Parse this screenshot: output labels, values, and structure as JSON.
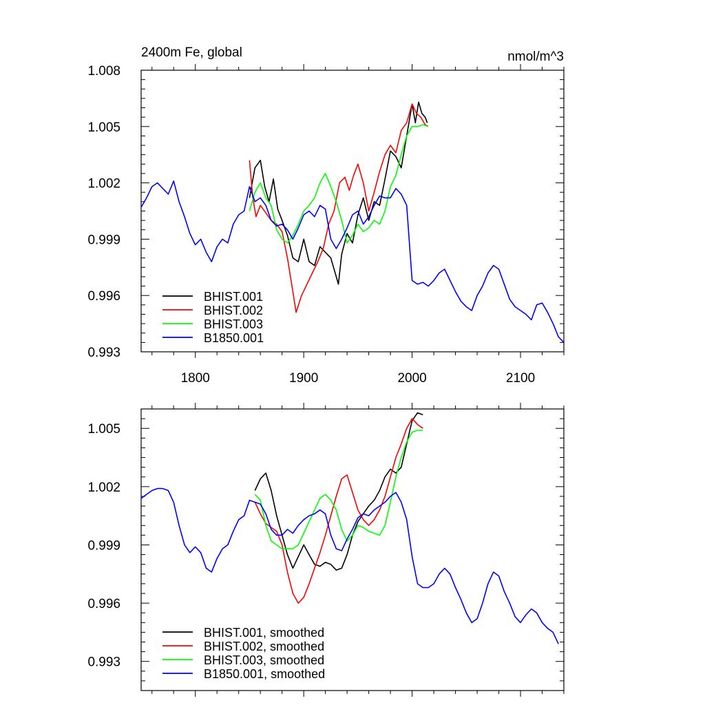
{
  "title_left": "2400m Fe, global",
  "title_right": "nmol/m^3",
  "chart_data": [
    {
      "type": "line",
      "title": "2400m Fe, global",
      "units": "nmol/m^3",
      "xlim": [
        1750,
        2140
      ],
      "ylim": [
        0.993,
        1.008
      ],
      "xticks": [
        1800,
        1900,
        2000,
        2100
      ],
      "xtick_labels": [
        "1800",
        "1900",
        "2000",
        "2100"
      ],
      "yticks": [
        0.993,
        0.996,
        0.999,
        1.002,
        1.005,
        1.008
      ],
      "ytick_labels": [
        "0.993",
        "0.996",
        "0.999",
        "1.002",
        "1.005",
        "1.008"
      ],
      "legend": "bottom-left",
      "series": [
        {
          "name": "BHIST.001",
          "color": "#000000",
          "x": [
            1850,
            1855,
            1860,
            1864,
            1868,
            1872,
            1876,
            1880,
            1885,
            1890,
            1895,
            1900,
            1905,
            1910,
            1915,
            1920,
            1925,
            1930,
            1932,
            1935,
            1940,
            1945,
            1950,
            1955,
            1960,
            1965,
            1970,
            1975,
            1980,
            1985,
            1990,
            1995,
            2000,
            2003,
            2006,
            2009,
            2012,
            2014
          ],
          "y": [
            1.0012,
            1.0028,
            1.0032,
            1.0018,
            1.001,
            1.0022,
            1.0006,
            1.0,
            0.9992,
            0.998,
            0.9978,
            0.999,
            0.9978,
            0.9976,
            0.9986,
            0.9983,
            0.998,
            0.997,
            0.9966,
            0.9982,
            0.9993,
            0.9988,
            1.0003,
            1.0012,
            1.0,
            1.001,
            1.0008,
            1.0022,
            1.0037,
            1.0034,
            1.0028,
            1.0045,
            1.0062,
            1.0052,
            1.0063,
            1.0057,
            1.0055,
            1.0052
          ]
        },
        {
          "name": "BHIST.002",
          "color": "#ff0000",
          "x": [
            1850,
            1853,
            1856,
            1860,
            1865,
            1870,
            1875,
            1880,
            1885,
            1890,
            1893,
            1898,
            1903,
            1908,
            1913,
            1918,
            1923,
            1928,
            1933,
            1938,
            1942,
            1946,
            1950,
            1955,
            1960,
            1965,
            1970,
            1975,
            1980,
            1985,
            1990,
            1995,
            2000,
            2004,
            2008,
            2012,
            2015
          ],
          "y": [
            1.0032,
            1.0012,
            1.0002,
            1.0008,
            1.0004,
            1.0,
            0.9998,
            0.9994,
            0.998,
            0.9962,
            0.9951,
            0.996,
            0.9966,
            0.9972,
            0.9978,
            0.9985,
            0.9998,
            1.0005,
            1.002,
            1.0023,
            1.0016,
            1.0024,
            1.003,
            1.002,
            1.0005,
            1.0015,
            1.0026,
            1.0035,
            1.004,
            1.0036,
            1.0048,
            1.0052,
            1.0062,
            1.0057,
            1.0055,
            1.0051,
            1.005
          ]
        },
        {
          "name": "BHIST.003",
          "color": "#00ff00",
          "x": [
            1850,
            1855,
            1860,
            1865,
            1870,
            1875,
            1880,
            1885,
            1890,
            1895,
            1900,
            1905,
            1910,
            1915,
            1920,
            1925,
            1930,
            1935,
            1940,
            1945,
            1950,
            1955,
            1960,
            1965,
            1970,
            1975,
            1980,
            1985,
            1990,
            1995,
            2000,
            2005,
            2010,
            2015
          ],
          "y": [
            1.0005,
            1.0015,
            1.002,
            1.0012,
            1.0008,
            0.9995,
            0.999,
            0.9988,
            0.9992,
            0.9998,
            1.0005,
            1.0008,
            1.0012,
            1.002,
            1.0025,
            1.0018,
            1.001,
            1.0,
            0.9988,
            0.9992,
            0.9998,
            0.9994,
            0.9996,
            1.0,
            0.9998,
            1.0005,
            1.0018,
            1.0024,
            1.0035,
            1.0045,
            1.005,
            1.005,
            1.0051,
            1.005
          ]
        },
        {
          "name": "B1850.001",
          "color": "#0000ff",
          "x": [
            1750,
            1755,
            1760,
            1765,
            1770,
            1775,
            1780,
            1785,
            1790,
            1795,
            1800,
            1805,
            1810,
            1815,
            1820,
            1825,
            1830,
            1835,
            1840,
            1845,
            1850,
            1855,
            1860,
            1865,
            1870,
            1875,
            1880,
            1885,
            1890,
            1895,
            1900,
            1905,
            1910,
            1915,
            1920,
            1925,
            1930,
            1935,
            1940,
            1945,
            1950,
            1955,
            1960,
            1965,
            1970,
            1975,
            1980,
            1985,
            1990,
            1995,
            2000,
            2005,
            2010,
            2015,
            2020,
            2025,
            2030,
            2035,
            2040,
            2045,
            2050,
            2055,
            2060,
            2065,
            2070,
            2075,
            2080,
            2085,
            2090,
            2095,
            2100,
            2105,
            2110,
            2115,
            2120,
            2125,
            2130,
            2135,
            2140
          ],
          "y": [
            1.0007,
            1.0012,
            1.0018,
            1.002,
            1.0017,
            1.0014,
            1.0021,
            1.001,
            1.0002,
            0.9993,
            0.9987,
            0.999,
            0.9983,
            0.9978,
            0.9986,
            0.999,
            0.9988,
            0.9998,
            1.0003,
            1.0005,
            1.0018,
            1.001,
            1.0012,
            1.0008,
            1.0,
            0.9997,
            0.9998,
            0.9995,
            0.999,
            0.9996,
            1.0003,
            1.0005,
            1.0002,
            1.0008,
            1.0006,
            0.999,
            0.9985,
            0.999,
            0.9996,
            1.0003,
            1.0005,
            0.9998,
            1.0002,
            1.0008,
            1.0013,
            1.0012,
            1.0012,
            1.0017,
            1.0014,
            1.0008,
            0.9968,
            0.9966,
            0.9967,
            0.9965,
            0.9968,
            0.9972,
            0.9974,
            0.9968,
            0.9962,
            0.9957,
            0.9954,
            0.9952,
            0.996,
            0.9965,
            0.9972,
            0.9976,
            0.9974,
            0.9966,
            0.9958,
            0.9954,
            0.9952,
            0.995,
            0.9947,
            0.9955,
            0.9956,
            0.9951,
            0.9945,
            0.9938,
            0.9935
          ]
        }
      ]
    },
    {
      "type": "line",
      "xlim": [
        1750,
        2140
      ],
      "ylim": [
        0.9915,
        1.006
      ],
      "xticks": [
        1800,
        1900,
        2000,
        2100
      ],
      "xtick_labels": [],
      "yticks": [
        0.993,
        0.996,
        0.999,
        1.002,
        1.005
      ],
      "ytick_labels": [
        "0.993",
        "0.996",
        "0.999",
        "1.002",
        "1.005"
      ],
      "legend": "bottom-left",
      "series": [
        {
          "name": "BHIST.001, smoothed",
          "color": "#000000",
          "x": [
            1855,
            1860,
            1865,
            1870,
            1875,
            1880,
            1885,
            1890,
            1895,
            1900,
            1905,
            1910,
            1915,
            1920,
            1925,
            1930,
            1935,
            1940,
            1945,
            1950,
            1955,
            1960,
            1965,
            1970,
            1975,
            1980,
            1985,
            1990,
            1995,
            2000,
            2005,
            2010
          ],
          "y": [
            1.0018,
            1.0024,
            1.0027,
            1.0018,
            1.0005,
            0.9995,
            0.9985,
            0.9978,
            0.9984,
            0.999,
            0.9985,
            0.998,
            0.9979,
            0.9981,
            0.998,
            0.9977,
            0.9978,
            0.9985,
            0.9995,
            1.0002,
            1.0006,
            1.001,
            1.0013,
            1.0018,
            1.0025,
            1.0029,
            1.0027,
            1.003,
            1.0042,
            1.0054,
            1.0058,
            1.0057
          ]
        },
        {
          "name": "BHIST.002, smoothed",
          "color": "#ff0000",
          "x": [
            1855,
            1860,
            1865,
            1870,
            1875,
            1880,
            1885,
            1890,
            1895,
            1900,
            1905,
            1910,
            1915,
            1920,
            1925,
            1930,
            1935,
            1940,
            1945,
            1950,
            1955,
            1960,
            1965,
            1970,
            1975,
            1980,
            1985,
            1990,
            1995,
            2000,
            2005,
            2010
          ],
          "y": [
            1.0012,
            1.0006,
            1.0001,
            0.9999,
            0.9997,
            0.999,
            0.9976,
            0.9965,
            0.996,
            0.9963,
            0.997,
            0.9978,
            0.9986,
            0.9995,
            1.0005,
            1.0015,
            1.0024,
            1.0026,
            1.0017,
            1.0008,
            1.0003,
            1.0,
            1.0003,
            1.0008,
            1.0015,
            1.0025,
            1.0035,
            1.0042,
            1.005,
            1.0055,
            1.0052,
            1.005
          ]
        },
        {
          "name": "BHIST.003, smoothed",
          "color": "#00ff00",
          "x": [
            1855,
            1860,
            1865,
            1870,
            1875,
            1880,
            1885,
            1890,
            1895,
            1900,
            1905,
            1910,
            1915,
            1920,
            1925,
            1930,
            1935,
            1940,
            1945,
            1950,
            1955,
            1960,
            1965,
            1970,
            1975,
            1980,
            1985,
            1990,
            1995,
            2000,
            2005,
            2010
          ],
          "y": [
            1.0016,
            1.0013,
            1.0,
            0.9992,
            0.999,
            0.9988,
            0.9988,
            0.9988,
            0.999,
            0.9996,
            1.0002,
            1.0008,
            1.0014,
            1.0016,
            1.0013,
            1.0008,
            0.9998,
            0.9992,
            0.9995,
            1.0,
            0.9999,
            0.9997,
            0.9996,
            0.9995,
            1.0,
            1.0012,
            1.0025,
            1.0035,
            1.0043,
            1.0048,
            1.0049,
            1.0049
          ]
        },
        {
          "name": "B1850.001, smoothed",
          "color": "#0000ff",
          "x": [
            1750,
            1755,
            1760,
            1765,
            1770,
            1775,
            1780,
            1785,
            1790,
            1795,
            1800,
            1805,
            1810,
            1815,
            1820,
            1825,
            1830,
            1835,
            1840,
            1845,
            1850,
            1855,
            1860,
            1865,
            1870,
            1875,
            1880,
            1885,
            1890,
            1895,
            1900,
            1905,
            1910,
            1915,
            1920,
            1925,
            1930,
            1935,
            1940,
            1945,
            1950,
            1955,
            1960,
            1965,
            1970,
            1975,
            1980,
            1985,
            1990,
            1995,
            2000,
            2005,
            2010,
            2015,
            2020,
            2025,
            2030,
            2035,
            2040,
            2045,
            2050,
            2055,
            2060,
            2065,
            2070,
            2075,
            2080,
            2085,
            2090,
            2095,
            2100,
            2105,
            2110,
            2115,
            2120,
            2125,
            2130,
            2135
          ],
          "y": [
            1.0014,
            1.0016,
            1.0018,
            1.0019,
            1.0019,
            1.0018,
            1.0012,
            1.0,
            0.999,
            0.9986,
            0.9989,
            0.9986,
            0.9978,
            0.9976,
            0.9983,
            0.9988,
            0.999,
            0.9997,
            1.0003,
            1.0005,
            1.0013,
            1.0012,
            1.0011,
            1.0006,
            0.9998,
            0.9995,
            0.9995,
            0.9998,
            0.9996,
            1.0,
            1.0003,
            1.0005,
            1.0006,
            1.0008,
            1.0006,
            0.9995,
            0.9988,
            0.9987,
            0.9993,
            0.9998,
            1.0004,
            1.0006,
            1.0005,
            1.0008,
            1.001,
            1.0012,
            1.0015,
            1.0017,
            1.0012,
            1.0003,
            0.9984,
            0.997,
            0.9968,
            0.9968,
            0.997,
            0.9975,
            0.9978,
            0.9975,
            0.9968,
            0.9962,
            0.9955,
            0.995,
            0.9952,
            0.996,
            0.997,
            0.9976,
            0.9974,
            0.9966,
            0.996,
            0.9953,
            0.995,
            0.9954,
            0.9957,
            0.9955,
            0.995,
            0.9947,
            0.9945,
            0.9939
          ]
        }
      ]
    }
  ]
}
